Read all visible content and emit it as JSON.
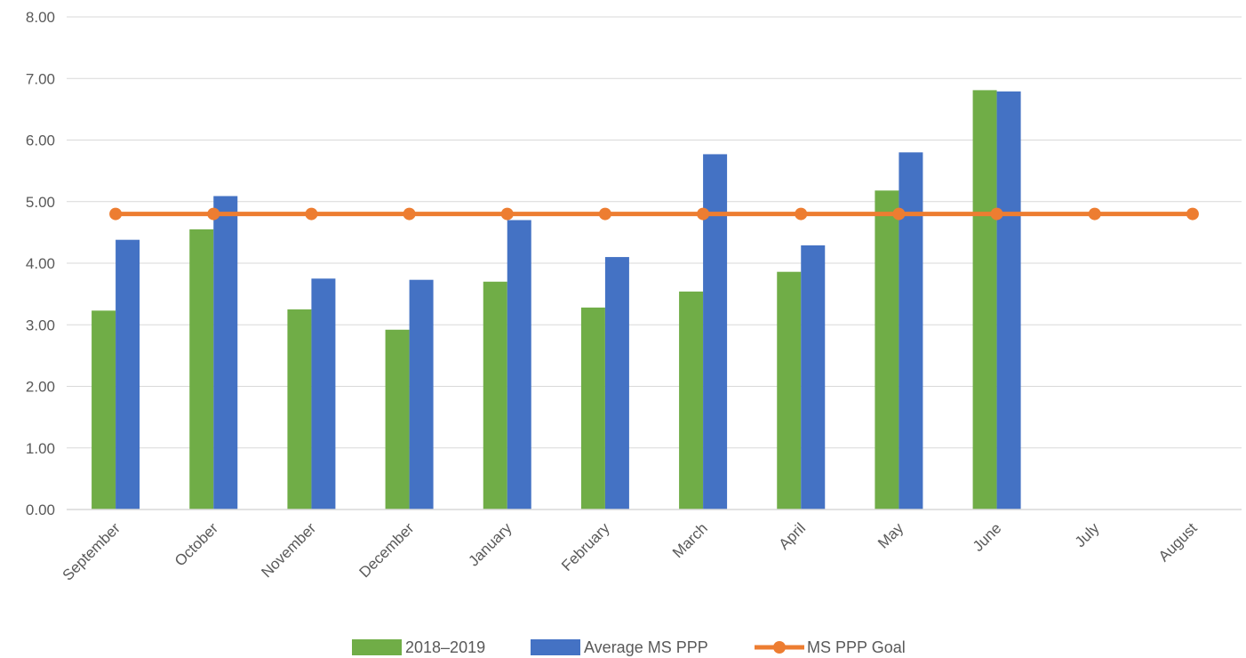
{
  "chart_data": {
    "type": "bar",
    "categories": [
      "September",
      "October",
      "November",
      "December",
      "January",
      "February",
      "March",
      "April",
      "May",
      "June",
      "July",
      "August"
    ],
    "series": [
      {
        "name": "2018–2019",
        "kind": "bar",
        "color": "#70ad47",
        "values": [
          3.23,
          4.55,
          3.25,
          2.92,
          3.7,
          3.28,
          3.54,
          3.86,
          5.18,
          6.81,
          null,
          null
        ]
      },
      {
        "name": "Average MS PPP",
        "kind": "bar",
        "color": "#4472c4",
        "values": [
          4.38,
          5.09,
          3.75,
          3.73,
          4.7,
          4.1,
          5.77,
          4.29,
          5.8,
          6.79,
          null,
          null
        ]
      },
      {
        "name": "MS PPP Goal",
        "kind": "line",
        "color": "#ed7d31",
        "values": [
          4.8,
          4.8,
          4.8,
          4.8,
          4.8,
          4.8,
          4.8,
          4.8,
          4.8,
          4.8,
          4.8,
          4.8
        ]
      }
    ],
    "y_ticks": [
      "0.00",
      "1.00",
      "2.00",
      "3.00",
      "4.00",
      "5.00",
      "6.00",
      "7.00",
      "8.00"
    ],
    "ylim": [
      0,
      8
    ],
    "grid": true,
    "legend_position": "bottom"
  }
}
